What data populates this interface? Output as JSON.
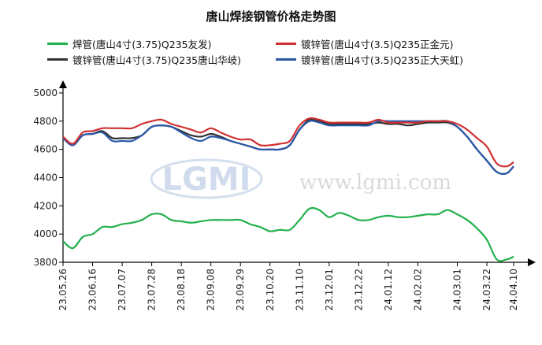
{
  "chart_data": {
    "type": "line",
    "title": "唐山焊接钢管价格走势图",
    "watermark": {
      "logo": "LGMI",
      "url": "www.lgmi.com"
    },
    "xlabel": "",
    "ylabel": "",
    "ylim": [
      3800,
      5000
    ],
    "yticks": [
      3800,
      4000,
      4200,
      4400,
      4600,
      4800,
      5000
    ],
    "grid": false,
    "legend_position": "top",
    "x_dates": [
      "2023-05-26",
      "2023-06-02",
      "2023-06-09",
      "2023-06-16",
      "2023-06-23",
      "2023-06-30",
      "2023-07-07",
      "2023-07-14",
      "2023-07-21",
      "2023-07-28",
      "2023-08-04",
      "2023-08-11",
      "2023-08-18",
      "2023-08-25",
      "2023-09-01",
      "2023-09-08",
      "2023-09-15",
      "2023-09-22",
      "2023-09-29",
      "2023-10-06",
      "2023-10-13",
      "2023-10-20",
      "2023-10-27",
      "2023-11-03",
      "2023-11-10",
      "2023-11-17",
      "2023-11-24",
      "2023-12-01",
      "2023-12-08",
      "2023-12-15",
      "2023-12-22",
      "2023-12-29",
      "2024-01-05",
      "2024-01-12",
      "2024-01-19",
      "2024-01-26",
      "2024-02-02",
      "2024-02-09",
      "2024-02-16",
      "2024-02-23",
      "2024-03-01",
      "2024-03-08",
      "2024-03-15",
      "2024-03-22",
      "2024-03-29",
      "2024-04-05",
      "2024-04-10"
    ],
    "xtick_labels": [
      "23.05.26",
      "23.06.16",
      "23.07.07",
      "23.07.28",
      "23.08.18",
      "23.09.08",
      "23.09.29",
      "23.10.20",
      "23.11.10",
      "23.12.01",
      "23.12.22",
      "24.01.12",
      "24.02.02",
      "24.03.01",
      "24.03.22",
      "24.04.10"
    ],
    "xtick_dates": [
      "2023-05-26",
      "2023-06-16",
      "2023-07-07",
      "2023-07-28",
      "2023-08-18",
      "2023-09-08",
      "2023-09-29",
      "2023-10-20",
      "2023-11-10",
      "2023-12-01",
      "2023-12-22",
      "2024-01-12",
      "2024-02-02",
      "2024-03-01",
      "2024-03-22",
      "2024-04-10"
    ],
    "series": [
      {
        "name": "焊管(唐山4寸(3.75)Q235友发)",
        "color": "#22b14c",
        "values": [
          3950,
          3900,
          3980,
          4000,
          4050,
          4050,
          4070,
          4080,
          4100,
          4140,
          4140,
          4100,
          4090,
          4080,
          4090,
          4100,
          4100,
          4100,
          4100,
          4070,
          4050,
          4020,
          4030,
          4030,
          4100,
          4180,
          4170,
          4120,
          4150,
          4130,
          4100,
          4100,
          4120,
          4130,
          4120,
          4120,
          4130,
          4140,
          4140,
          4170,
          4140,
          4100,
          4040,
          3960,
          3820,
          3820,
          3840
        ]
      },
      {
        "name": "镀锌管(唐山4寸(3.5)Q235正金元)",
        "color": "#d03030",
        "values": [
          4690,
          4640,
          4720,
          4730,
          4750,
          4750,
          4750,
          4750,
          4780,
          4800,
          4810,
          4780,
          4760,
          4740,
          4720,
          4750,
          4720,
          4690,
          4670,
          4670,
          4630,
          4630,
          4640,
          4660,
          4770,
          4820,
          4810,
          4790,
          4790,
          4790,
          4790,
          4790,
          4810,
          4790,
          4790,
          4790,
          4790,
          4800,
          4800,
          4800,
          4780,
          4740,
          4680,
          4620,
          4500,
          4480,
          4510
        ]
      },
      {
        "name": "镀锌管(唐山4寸(3.75)Q235唐山华岐)",
        "color": "#333333",
        "values": [
          4680,
          4630,
          4700,
          4710,
          4730,
          4680,
          4680,
          4680,
          4700,
          4760,
          4770,
          4760,
          4730,
          4700,
          4690,
          4710,
          4690,
          4660,
          4640,
          4620,
          4600,
          4600,
          4600,
          4630,
          4740,
          4810,
          4800,
          4780,
          4780,
          4780,
          4780,
          4780,
          4790,
          4780,
          4780,
          4770,
          4780,
          4790,
          4790,
          4790,
          4760,
          4690,
          4600,
          4520,
          4440,
          4430,
          4480
        ]
      },
      {
        "name": "镀锌管(唐山4寸(3.5)Q235正大天虹)",
        "color": "#2858a8",
        "values": [
          4680,
          4630,
          4700,
          4710,
          4720,
          4660,
          4660,
          4660,
          4700,
          4760,
          4770,
          4760,
          4720,
          4680,
          4660,
          4690,
          4680,
          4660,
          4640,
          4620,
          4600,
          4600,
          4600,
          4630,
          4740,
          4800,
          4790,
          4770,
          4770,
          4770,
          4770,
          4770,
          4800,
          4800,
          4800,
          4800,
          4800,
          4800,
          4800,
          4800,
          4760,
          4690,
          4600,
          4520,
          4440,
          4430,
          4480
        ]
      }
    ]
  }
}
